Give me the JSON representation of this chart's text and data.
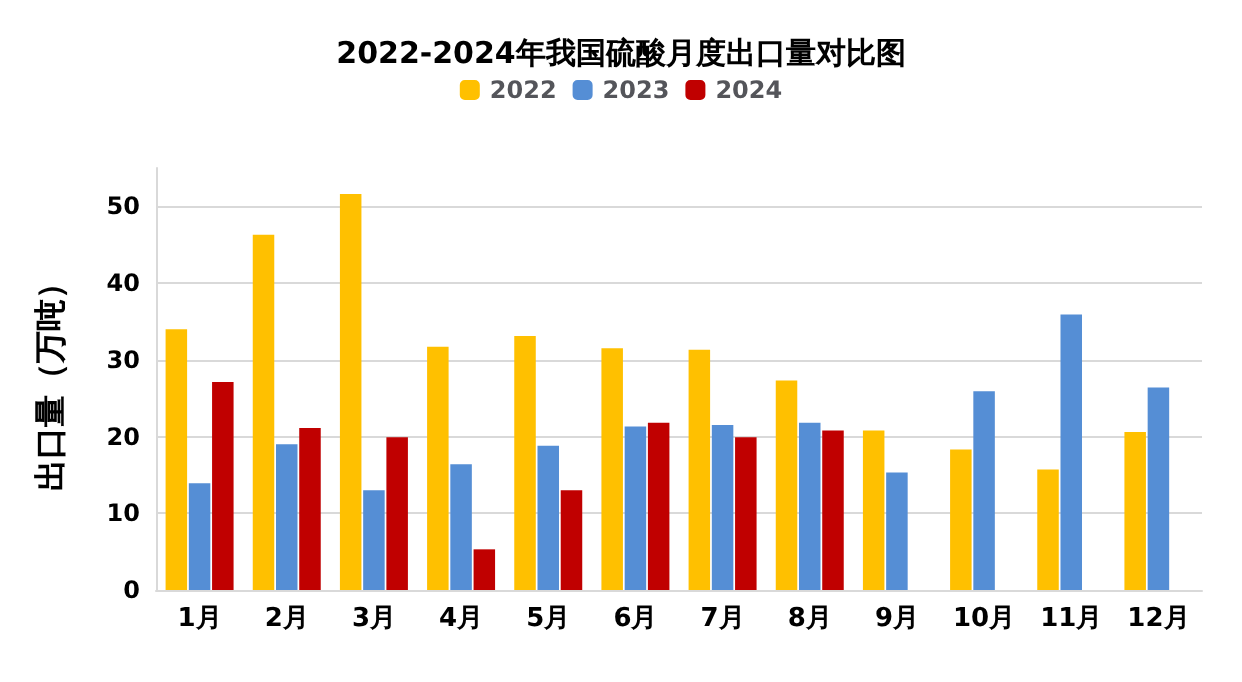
{
  "chart_data": {
    "type": "bar",
    "title": "2022-2024年我国硫酸月度出口量对比图",
    "ylabel": "出口量（万吨）",
    "categories": [
      "1月",
      "2月",
      "3月",
      "4月",
      "5月",
      "6月",
      "7月",
      "8月",
      "9月",
      "10月",
      "11月",
      "12月"
    ],
    "series": [
      {
        "name": "2022",
        "color": "#ffc000",
        "values": [
          34.0,
          46.3,
          51.6,
          31.7,
          33.1,
          31.5,
          31.3,
          27.3,
          20.8,
          18.3,
          15.7,
          20.6
        ]
      },
      {
        "name": "2023",
        "color": "#558ed5",
        "values": [
          13.9,
          19.0,
          13.0,
          16.4,
          18.8,
          21.3,
          21.5,
          21.8,
          15.3,
          25.9,
          35.9,
          26.4
        ]
      },
      {
        "name": "2024",
        "color": "#c00000",
        "values": [
          27.1,
          21.1,
          19.9,
          5.3,
          13.0,
          21.8,
          19.9,
          20.8,
          null,
          null,
          null,
          null
        ]
      }
    ],
    "ylim": [
      0,
      55
    ],
    "yticks": [
      0,
      10,
      20,
      30,
      40,
      50
    ],
    "grid": "y",
    "legend": "top"
  }
}
